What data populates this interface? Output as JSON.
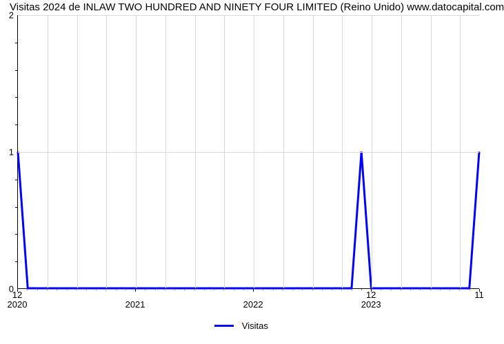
{
  "chart": {
    "type": "line",
    "title": "Visitas 2024 de INLAW TWO HUNDRED AND NINETY FOUR LIMITED (Reino Unido) www.datocapital.com",
    "title_fontsize": 15,
    "background_color": "#ffffff",
    "grid_color": "#d9d9d9",
    "axis_color": "#000000",
    "text_color": "#000000",
    "y": {
      "lim": [
        0,
        2
      ],
      "ticks": [
        0,
        1,
        2
      ],
      "minor_count_between": 4,
      "label_fontsize": 13
    },
    "x": {
      "domain_months": 47,
      "major_ticks": [
        {
          "month": 0,
          "year_label": "2020",
          "top_label": "12"
        },
        {
          "month": 12,
          "year_label": "2021",
          "top_label": ""
        },
        {
          "month": 24,
          "year_label": "2022",
          "top_label": ""
        },
        {
          "month": 36,
          "year_label": "2023",
          "top_label": "12"
        },
        {
          "month": 47,
          "year_label": "",
          "top_label": "11"
        }
      ],
      "minor_every": 1,
      "vgrid_every": 3,
      "label_fontsize": 13
    },
    "series": {
      "label": "Visitas",
      "color": "#0000ff",
      "line_width": 3,
      "points": [
        {
          "m": 0,
          "v": 1
        },
        {
          "m": 1,
          "v": 0
        },
        {
          "m": 34,
          "v": 0
        },
        {
          "m": 35,
          "v": 1
        },
        {
          "m": 36,
          "v": 0
        },
        {
          "m": 46,
          "v": 0
        },
        {
          "m": 47,
          "v": 1
        }
      ]
    },
    "legend": {
      "position": "bottom-center",
      "fontsize": 13
    }
  }
}
